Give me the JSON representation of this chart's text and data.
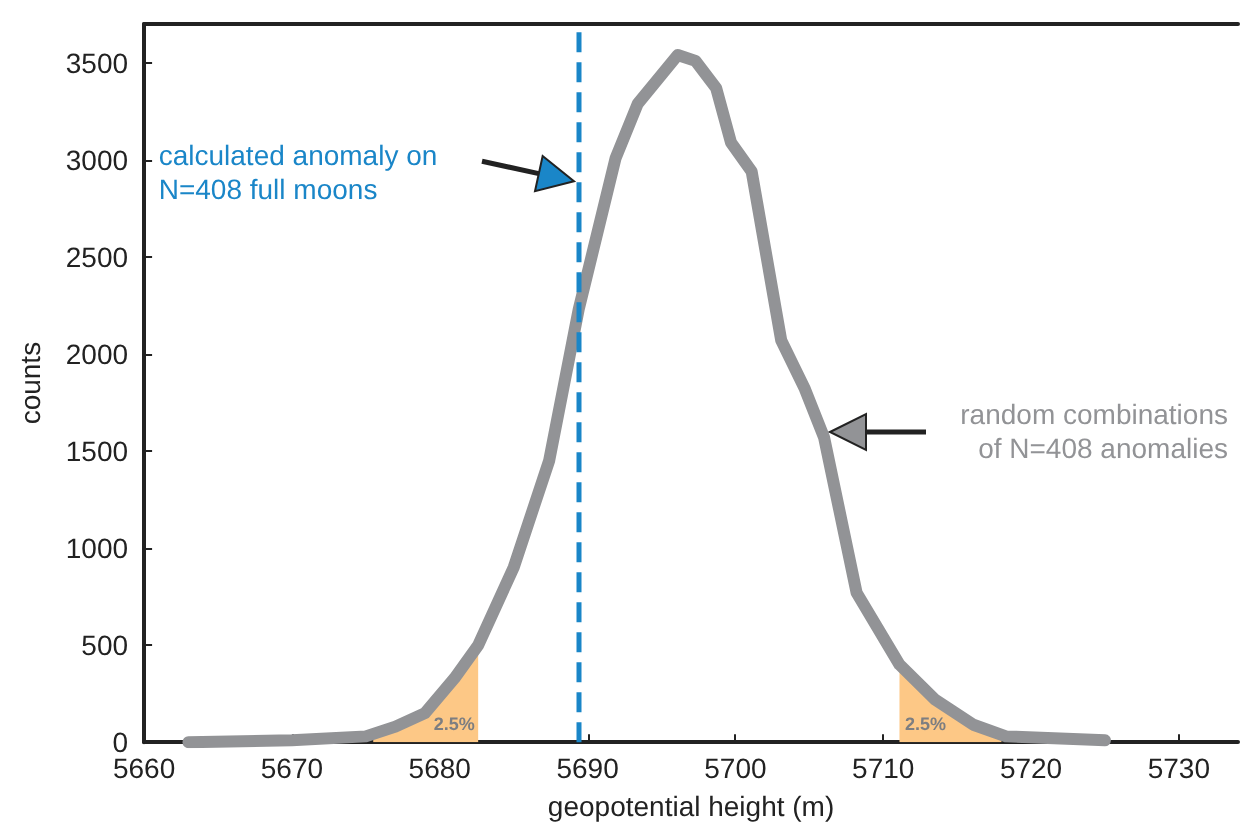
{
  "chart_data": {
    "type": "line",
    "xlabel": "geopotential height (m)",
    "ylabel": "counts",
    "series": [
      {
        "name": "random combinations\nof N=408 anomalies",
        "color": "#929396",
        "x": [
          5663,
          5670,
          5675,
          5677,
          5679,
          5681,
          5682.6,
          5685,
          5687.4,
          5689.4,
          5691.9,
          5693.4,
          5696.1,
          5697.3,
          5698.7,
          5699.7,
          5701.1,
          5703.1,
          5704.7,
          5706,
          5708.2,
          5711.1,
          5713.5,
          5716.1,
          5718.3,
          5725
        ],
        "values": [
          0,
          10,
          30,
          80,
          150,
          330,
          500,
          900,
          1450,
          2230,
          3010,
          3290,
          3540,
          3510,
          3370,
          3090,
          2940,
          2070,
          1820,
          1570,
          770,
          400,
          220,
          90,
          30,
          10
        ]
      },
      {
        "type": "area",
        "color": "#fdc886",
        "x": [
          5675.5,
          5677,
          5679,
          5681,
          5682.6
        ],
        "values": [
          40,
          80,
          150,
          330,
          500
        ]
      },
      {
        "type": "area",
        "color": "#fdc886",
        "x": [
          5711.1,
          5713.5,
          5716.1,
          5718
        ],
        "values": [
          400,
          220,
          90,
          30
        ]
      }
    ],
    "xlim": [
      5660,
      5734
    ],
    "xticks": [
      5660,
      5670,
      5680,
      5690,
      5700,
      5710,
      5720,
      5730
    ],
    "ylim": [
      0,
      3700
    ],
    "yticks": [
      0,
      500,
      1000,
      1500,
      2000,
      2500,
      3000,
      3500
    ],
    "ref_lines": [
      {
        "axis": "x",
        "value": 5689.4,
        "color": "#1a86c8",
        "line_style": "dashed"
      }
    ],
    "annotations": [
      "calculated anomaly on\nN=408 full moons",
      "2.5%",
      "2.5%"
    ],
    "grid": false,
    "legend": false,
    "marker": "none",
    "line_style": "solid"
  }
}
